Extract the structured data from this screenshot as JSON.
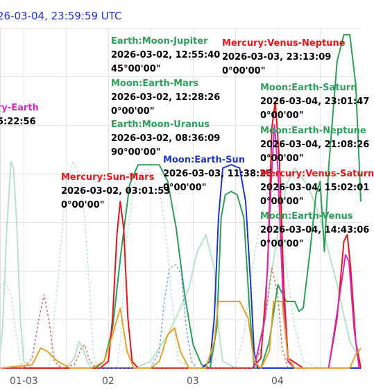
{
  "header": {
    "timestamp": "26-03-04, 23:59:59 UTC"
  },
  "colors": {
    "red": "#e8141c",
    "green": "#2e9e5b",
    "blue": "#1f34c8",
    "magenta": "#d12cc0",
    "pale_green": "#b7e2c8",
    "brown_dash": "#c06a5a",
    "orange": "#e6a12a",
    "light_blue_dash": "#6a9ed8",
    "grid": "#e3e3e3"
  },
  "annotations": [
    {
      "id": "a1",
      "label": "Earth:Moon-Jupiter",
      "color": "#2e9e5b",
      "time": "2026-03-02, 12:55:40",
      "angle": "45°00'00\""
    },
    {
      "id": "a2",
      "label": "Mercury:Venus-Neptune",
      "color": "#e8141c",
      "time": "2026-03-03, 23:13:09",
      "angle": "0°00'00\""
    },
    {
      "id": "a3",
      "label": "ry-Earth",
      "color": "#d12cc0",
      "time": "5:22:56",
      "angle": ""
    },
    {
      "id": "a4",
      "label": "Moon:Earth-Mars",
      "color": "#2e9e5b",
      "time": "2026-03-02, 12:28:26",
      "angle": "0°00'00\""
    },
    {
      "id": "a5",
      "label": "Moon:Earth-Saturn",
      "color": "#2e9e5b",
      "time": "2026-03-04, 23:01:47",
      "angle": "0°00'00\""
    },
    {
      "id": "a6",
      "label": "Earth:Moon-Uranus",
      "color": "#2e9e5b",
      "time": "2026-03-02, 08:36:09",
      "angle": "90°00'00\""
    },
    {
      "id": "a7",
      "label": "Moon:Earth-Neptune",
      "color": "#2e9e5b",
      "time": "2026-03-04, 21:08:26",
      "angle": "0°00'00\""
    },
    {
      "id": "a8",
      "label": "Moon:Earth-Sun",
      "color": "#1f34c8",
      "time": "2026-03-03, 11:38:26",
      "angle": "0°00'00\""
    },
    {
      "id": "a9",
      "label": "Mercury:Sun-Mars",
      "color": "#e8141c",
      "time": "2026-03-02, 03:01:53",
      "angle": "0°00'00\""
    },
    {
      "id": "a10",
      "label": "Mercury:Venus-Saturn",
      "color": "#e8141c",
      "time": "2026-03-04, 15:02:01",
      "angle": "0°00'00\""
    },
    {
      "id": "a11",
      "label": "Moon:Earth-Venus",
      "color": "#2e9e5b",
      "time": "2026-03-04, 14:43:06",
      "angle": "0°00'00\""
    }
  ],
  "chart_data": {
    "type": "line",
    "x_unit": "day of March 2026",
    "x_ticks": [
      {
        "x": 3,
        "label": "01-03"
      },
      {
        "x": 4,
        "label": "02"
      },
      {
        "x": 5,
        "label": "03"
      },
      {
        "x": 6,
        "label": "04"
      }
    ],
    "xlim": [
      2.72,
      6.98
    ],
    "ylim": [
      0,
      1
    ],
    "grid": true,
    "series": [
      {
        "color": "#b7e2c8",
        "dash": false,
        "points": [
          [
            2.72,
            0.04
          ],
          [
            2.75,
            0.12
          ],
          [
            2.8,
            0.42
          ],
          [
            2.85,
            0.62
          ],
          [
            2.88,
            0.6
          ],
          [
            2.92,
            0.42
          ],
          [
            2.96,
            0.15
          ],
          [
            3.0,
            0.02
          ],
          [
            3.1,
            0.0
          ],
          [
            3.3,
            0.0
          ],
          [
            3.5,
            0.0
          ],
          [
            3.6,
            0.03
          ],
          [
            3.65,
            0.08
          ],
          [
            3.7,
            0.06
          ],
          [
            3.75,
            0.02
          ],
          [
            3.8,
            0.0
          ],
          [
            4.0,
            0.0
          ],
          [
            4.3,
            0.0
          ],
          [
            4.5,
            0.02
          ],
          [
            4.7,
            0.1
          ],
          [
            4.85,
            0.18
          ],
          [
            4.95,
            0.24
          ],
          [
            5.05,
            0.35
          ],
          [
            5.15,
            0.4
          ],
          [
            5.25,
            0.3
          ],
          [
            5.3,
            0.12
          ],
          [
            5.35,
            0.02
          ],
          [
            5.5,
            0.0
          ],
          [
            5.7,
            0.0
          ],
          [
            5.8,
            0.05
          ],
          [
            5.9,
            0.25
          ],
          [
            6.0,
            0.4
          ],
          [
            6.1,
            0.55
          ],
          [
            6.2,
            0.6
          ],
          [
            6.35,
            0.55
          ],
          [
            6.5,
            0.45
          ],
          [
            6.7,
            0.25
          ],
          [
            6.85,
            0.08
          ],
          [
            6.98,
            0.02
          ]
        ]
      },
      {
        "color": "#b7e2c8",
        "dash": true,
        "points": [
          [
            2.72,
            0.24
          ],
          [
            2.78,
            0.26
          ],
          [
            2.85,
            0.22
          ],
          [
            2.9,
            0.12
          ],
          [
            2.95,
            0.03
          ],
          [
            3.0,
            0.0
          ],
          [
            3.3,
            0.0
          ],
          [
            3.4,
            0.25
          ],
          [
            3.5,
            0.55
          ],
          [
            3.58,
            0.62
          ],
          [
            3.66,
            0.58
          ],
          [
            3.72,
            0.45
          ],
          [
            3.78,
            0.22
          ],
          [
            3.82,
            0.05
          ],
          [
            3.86,
            0.0
          ],
          [
            4.1,
            0.0
          ],
          [
            4.15,
            0.1
          ],
          [
            4.2,
            0.35
          ],
          [
            4.3,
            0.55
          ],
          [
            4.45,
            0.6
          ],
          [
            4.6,
            0.55
          ],
          [
            4.7,
            0.35
          ],
          [
            4.78,
            0.12
          ],
          [
            4.82,
            0.02
          ],
          [
            5.0,
            0.0
          ],
          [
            5.2,
            0.0
          ],
          [
            5.4,
            0.0
          ],
          [
            5.5,
            0.0
          ],
          [
            5.6,
            0.1
          ],
          [
            5.7,
            0.3
          ],
          [
            5.8,
            0.45
          ],
          [
            5.9,
            0.55
          ],
          [
            6.0,
            0.5
          ],
          [
            6.1,
            0.3
          ],
          [
            6.2,
            0.12
          ],
          [
            6.3,
            0.02
          ],
          [
            6.5,
            0.0
          ],
          [
            6.98,
            0.0
          ]
        ]
      },
      {
        "color": "#2e9e5b",
        "dash": false,
        "points": [
          [
            2.72,
            0.0
          ],
          [
            3.6,
            0.0
          ],
          [
            3.85,
            0.0
          ],
          [
            3.95,
            0.02
          ],
          [
            4.05,
            0.12
          ],
          [
            4.15,
            0.35
          ],
          [
            4.25,
            0.55
          ],
          [
            4.35,
            0.61
          ],
          [
            4.45,
            0.61
          ],
          [
            4.6,
            0.61
          ],
          [
            4.7,
            0.56
          ],
          [
            4.8,
            0.42
          ],
          [
            4.9,
            0.22
          ],
          [
            5.0,
            0.07
          ],
          [
            5.1,
            0.01
          ],
          [
            5.2,
            0.0
          ],
          [
            5.4,
            0.0
          ],
          [
            5.6,
            0.0
          ],
          [
            5.8,
            0.0
          ],
          [
            5.9,
            0.08
          ],
          [
            6.0,
            0.25
          ],
          [
            6.1,
            0.2
          ],
          [
            6.2,
            0.2
          ],
          [
            6.25,
            0.17
          ],
          [
            6.3,
            0.18
          ],
          [
            6.38,
            0.35
          ],
          [
            6.45,
            0.52
          ],
          [
            6.5,
            0.56
          ],
          [
            6.55,
            0.35
          ],
          [
            6.6,
            0.6
          ],
          [
            6.7,
            0.92
          ],
          [
            6.78,
            1.0
          ],
          [
            6.85,
            1.0
          ],
          [
            6.92,
            0.85
          ],
          [
            6.98,
            0.5
          ]
        ]
      },
      {
        "color": "#1f34c8",
        "dash": false,
        "points": [
          [
            2.72,
            0.0
          ],
          [
            5.0,
            0.0
          ],
          [
            5.1,
            0.0
          ],
          [
            5.2,
            0.02
          ],
          [
            5.25,
            0.15
          ],
          [
            5.3,
            0.45
          ],
          [
            5.35,
            0.6
          ],
          [
            5.45,
            0.61
          ],
          [
            5.55,
            0.6
          ],
          [
            5.62,
            0.5
          ],
          [
            5.68,
            0.25
          ],
          [
            5.72,
            0.05
          ],
          [
            5.76,
            0.0
          ],
          [
            6.98,
            0.0
          ]
        ]
      },
      {
        "color": "#2e9e5b",
        "dash": false,
        "points": [
          [
            5.2,
            0.0
          ],
          [
            5.28,
            0.12
          ],
          [
            5.33,
            0.45
          ],
          [
            5.38,
            0.52
          ],
          [
            5.45,
            0.53
          ],
          [
            5.52,
            0.52
          ],
          [
            5.6,
            0.45
          ],
          [
            5.66,
            0.2
          ],
          [
            5.72,
            0.0
          ]
        ]
      },
      {
        "color": "#e8141c",
        "dash": false,
        "points": [
          [
            2.72,
            0.0
          ],
          [
            3.7,
            0.0
          ],
          [
            3.9,
            0.0
          ],
          [
            4.0,
            0.02
          ],
          [
            4.05,
            0.15
          ],
          [
            4.1,
            0.4
          ],
          [
            4.14,
            0.5
          ],
          [
            4.18,
            0.42
          ],
          [
            4.23,
            0.15
          ],
          [
            4.28,
            0.02
          ],
          [
            4.35,
            0.0
          ],
          [
            5.7,
            0.0
          ],
          [
            5.8,
            0.03
          ],
          [
            5.88,
            0.3
          ],
          [
            5.93,
            0.72
          ],
          [
            5.97,
            0.8
          ],
          [
            6.02,
            0.62
          ],
          [
            6.07,
            0.25
          ],
          [
            6.12,
            0.03
          ],
          [
            6.3,
            0.0
          ],
          [
            6.6,
            0.0
          ],
          [
            6.7,
            0.15
          ],
          [
            6.78,
            0.38
          ],
          [
            6.82,
            0.4
          ],
          [
            6.86,
            0.3
          ],
          [
            6.92,
            0.08
          ],
          [
            6.98,
            0.0
          ]
        ]
      },
      {
        "color": "#d12cc0",
        "dash": false,
        "points": [
          [
            5.72,
            0.0
          ],
          [
            5.85,
            0.15
          ],
          [
            5.92,
            0.55
          ],
          [
            5.96,
            0.73
          ],
          [
            6.0,
            0.6
          ],
          [
            6.06,
            0.22
          ],
          [
            6.12,
            0.02
          ],
          [
            6.2,
            0.0
          ],
          [
            6.6,
            0.0
          ],
          [
            6.72,
            0.2
          ],
          [
            6.8,
            0.34
          ],
          [
            6.84,
            0.32
          ],
          [
            6.9,
            0.12
          ],
          [
            6.96,
            0.0
          ]
        ]
      },
      {
        "color": "#c06a5a",
        "dash": true,
        "points": [
          [
            2.72,
            0.0
          ],
          [
            3.0,
            0.0
          ],
          [
            3.1,
            0.03
          ],
          [
            3.18,
            0.15
          ],
          [
            3.24,
            0.22
          ],
          [
            3.3,
            0.14
          ],
          [
            3.36,
            0.02
          ],
          [
            3.45,
            0.0
          ],
          [
            3.6,
            0.01
          ],
          [
            3.68,
            0.06
          ],
          [
            3.72,
            0.07
          ],
          [
            3.78,
            0.02
          ],
          [
            3.85,
            0.0
          ],
          [
            5.7,
            0.0
          ],
          [
            5.8,
            0.06
          ],
          [
            5.88,
            0.2
          ],
          [
            5.93,
            0.3
          ],
          [
            6.0,
            0.22
          ],
          [
            6.05,
            0.06
          ],
          [
            6.12,
            0.0
          ]
        ]
      },
      {
        "color": "#e6a12a",
        "dash": false,
        "points": [
          [
            2.72,
            0.0
          ],
          [
            3.1,
            0.01
          ],
          [
            3.2,
            0.06
          ],
          [
            3.28,
            0.05
          ],
          [
            3.4,
            0.02
          ],
          [
            3.55,
            0.0
          ],
          [
            3.8,
            0.0
          ],
          [
            3.95,
            0.02
          ],
          [
            4.05,
            0.1
          ],
          [
            4.14,
            0.18
          ],
          [
            4.22,
            0.05
          ],
          [
            4.3,
            0.0
          ],
          [
            4.5,
            0.0
          ],
          [
            4.6,
            0.02
          ],
          [
            4.7,
            0.1
          ],
          [
            4.78,
            0.12
          ],
          [
            4.85,
            0.05
          ],
          [
            4.95,
            0.0
          ],
          [
            5.15,
            0.0
          ],
          [
            5.25,
            0.08
          ],
          [
            5.3,
            0.2
          ],
          [
            5.4,
            0.2
          ],
          [
            5.55,
            0.2
          ],
          [
            5.65,
            0.15
          ],
          [
            5.72,
            0.02
          ],
          [
            5.8,
            0.0
          ],
          [
            5.9,
            0.05
          ],
          [
            5.95,
            0.2
          ],
          [
            6.05,
            0.2
          ],
          [
            6.12,
            0.03
          ],
          [
            6.2,
            0.0
          ],
          [
            6.85,
            0.0
          ],
          [
            6.92,
            0.04
          ],
          [
            6.98,
            0.06
          ]
        ]
      },
      {
        "color": "#6a9ed8",
        "dash": true,
        "points": [
          [
            4.5,
            0.0
          ],
          [
            4.6,
            0.05
          ],
          [
            4.66,
            0.2
          ],
          [
            4.72,
            0.3
          ],
          [
            4.8,
            0.31
          ],
          [
            4.86,
            0.28
          ],
          [
            4.92,
            0.12
          ],
          [
            4.98,
            0.02
          ],
          [
            5.05,
            0.0
          ]
        ]
      }
    ]
  }
}
